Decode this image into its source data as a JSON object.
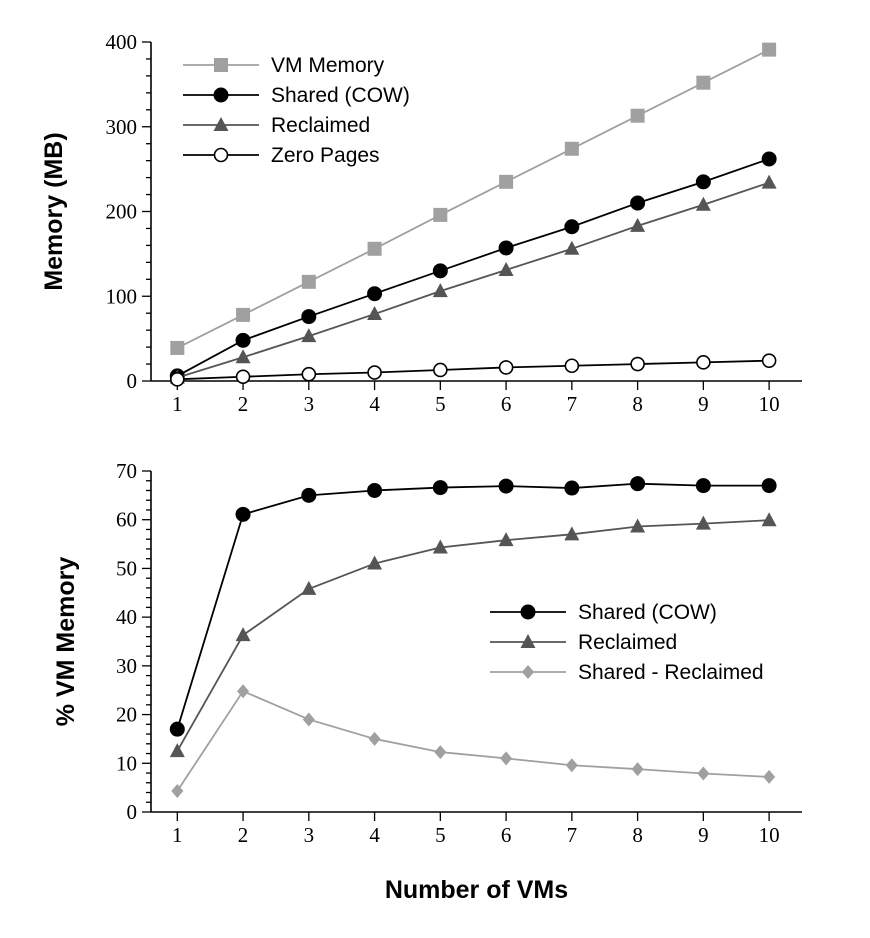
{
  "chart_data": [
    {
      "type": "line",
      "ylabel": "Memory (MB)",
      "xlabel": "",
      "x": [
        1,
        2,
        3,
        4,
        5,
        6,
        7,
        8,
        9,
        10
      ],
      "xlim": [
        0.6,
        10.5
      ],
      "ylim": [
        0,
        400
      ],
      "y_ticks": [
        "0",
        "100",
        "200",
        "300",
        "400"
      ],
      "x_ticks": [
        "1",
        "2",
        "3",
        "4",
        "5",
        "6",
        "7",
        "8",
        "9",
        "10"
      ],
      "grid": false,
      "legend_position": "top-left",
      "series": [
        {
          "name": "VM Memory",
          "color": "#a0a0a0",
          "marker": "square",
          "values": [
            39,
            78,
            117,
            156,
            196,
            235,
            274,
            313,
            352,
            391
          ]
        },
        {
          "name": "Shared (COW)",
          "color": "#000000",
          "marker": "filled-circle",
          "values": [
            6,
            48,
            76,
            103,
            130,
            157,
            182,
            210,
            235,
            262
          ]
        },
        {
          "name": "Reclaimed",
          "color": "#555555",
          "marker": "triangle",
          "values": [
            4,
            28,
            53,
            79,
            106,
            131,
            156,
            183,
            208,
            234
          ]
        },
        {
          "name": "Zero Pages",
          "color": "#000000",
          "marker": "open-circle",
          "values": [
            2,
            5,
            8,
            10,
            13,
            16,
            18,
            20,
            22,
            24
          ]
        }
      ]
    },
    {
      "type": "line",
      "ylabel": "% VM Memory",
      "xlabel": "Number of VMs",
      "x": [
        1,
        2,
        3,
        4,
        5,
        6,
        7,
        8,
        9,
        10
      ],
      "xlim": [
        0.6,
        10.5
      ],
      "ylim": [
        0,
        70
      ],
      "y_ticks": [
        "0",
        "10",
        "20",
        "30",
        "40",
        "50",
        "60",
        "70"
      ],
      "x_ticks": [
        "1",
        "2",
        "3",
        "4",
        "5",
        "6",
        "7",
        "8",
        "9",
        "10"
      ],
      "grid": false,
      "legend_position": "center-right",
      "series": [
        {
          "name": "Shared (COW)",
          "color": "#000000",
          "marker": "filled-circle",
          "values": [
            17,
            61.1,
            65,
            66,
            66.6,
            66.9,
            66.5,
            67.4,
            67,
            67
          ]
        },
        {
          "name": "Reclaimed",
          "color": "#555555",
          "marker": "triangle",
          "values": [
            12.5,
            36.3,
            45.8,
            51,
            54.3,
            55.8,
            57,
            58.6,
            59.2,
            59.9
          ]
        },
        {
          "name": "Shared - Reclaimed",
          "color": "#a0a0a0",
          "marker": "diamond",
          "values": [
            4.3,
            24.8,
            19,
            15,
            12.3,
            11,
            9.6,
            8.8,
            7.9,
            7.2
          ]
        }
      ]
    }
  ]
}
